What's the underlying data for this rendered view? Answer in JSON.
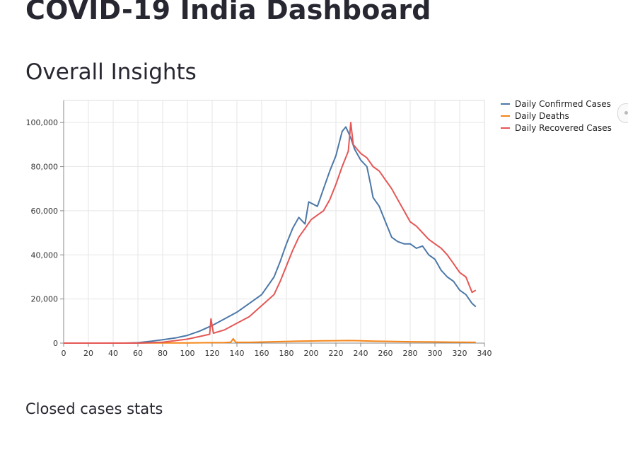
{
  "header": {
    "title": "COVID-19 India Dashboard"
  },
  "sections": {
    "overall": "Overall Insights",
    "closed": "Closed cases stats"
  },
  "chart_data": {
    "type": "line",
    "title": "",
    "xlabel": "",
    "ylabel": "",
    "xlim": [
      0,
      340
    ],
    "ylim": [
      0,
      110000
    ],
    "x_ticks": [
      "0",
      "20",
      "40",
      "60",
      "80",
      "100",
      "120",
      "140",
      "160",
      "180",
      "200",
      "220",
      "240",
      "260",
      "280",
      "300",
      "320",
      "340"
    ],
    "y_ticks": [
      "0",
      "20,000",
      "40,000",
      "60,000",
      "80,000",
      "100,000"
    ],
    "grid": true,
    "legend_position": "top-right",
    "series": [
      {
        "name": "Daily Confirmed Cases",
        "color": "#4c78a8",
        "points": [
          [
            0,
            0
          ],
          [
            30,
            0
          ],
          [
            50,
            0
          ],
          [
            60,
            200
          ],
          [
            70,
            800
          ],
          [
            80,
            1500
          ],
          [
            90,
            2300
          ],
          [
            100,
            3500
          ],
          [
            110,
            5500
          ],
          [
            120,
            8000
          ],
          [
            130,
            11000
          ],
          [
            140,
            14000
          ],
          [
            150,
            18000
          ],
          [
            160,
            22000
          ],
          [
            170,
            30000
          ],
          [
            175,
            37000
          ],
          [
            180,
            45000
          ],
          [
            185,
            52000
          ],
          [
            190,
            57000
          ],
          [
            195,
            54000
          ],
          [
            198,
            64000
          ],
          [
            205,
            62000
          ],
          [
            210,
            70000
          ],
          [
            215,
            78000
          ],
          [
            220,
            85000
          ],
          [
            225,
            96000
          ],
          [
            228,
            98000
          ],
          [
            232,
            93000
          ],
          [
            235,
            88000
          ],
          [
            240,
            83000
          ],
          [
            245,
            80000
          ],
          [
            248,
            72000
          ],
          [
            250,
            66000
          ],
          [
            255,
            62000
          ],
          [
            260,
            55000
          ],
          [
            265,
            48000
          ],
          [
            270,
            46000
          ],
          [
            275,
            45000
          ],
          [
            280,
            45000
          ],
          [
            285,
            43000
          ],
          [
            290,
            44000
          ],
          [
            295,
            40000
          ],
          [
            300,
            38000
          ],
          [
            305,
            33000
          ],
          [
            310,
            30000
          ],
          [
            315,
            28000
          ],
          [
            320,
            24000
          ],
          [
            325,
            22000
          ],
          [
            330,
            18000
          ],
          [
            333,
            16500
          ]
        ]
      },
      {
        "name": "Daily Deaths",
        "color": "#f58518",
        "points": [
          [
            0,
            0
          ],
          [
            60,
            20
          ],
          [
            80,
            50
          ],
          [
            100,
            100
          ],
          [
            120,
            180
          ],
          [
            130,
            250
          ],
          [
            135,
            400
          ],
          [
            137,
            2000
          ],
          [
            139,
            350
          ],
          [
            150,
            350
          ],
          [
            170,
            600
          ],
          [
            190,
            900
          ],
          [
            210,
            1050
          ],
          [
            220,
            1100
          ],
          [
            230,
            1150
          ],
          [
            240,
            1050
          ],
          [
            250,
            900
          ],
          [
            260,
            800
          ],
          [
            280,
            600
          ],
          [
            300,
            500
          ],
          [
            320,
            400
          ],
          [
            333,
            350
          ]
        ]
      },
      {
        "name": "Daily Recovered Cases",
        "color": "#e45756",
        "points": [
          [
            0,
            0
          ],
          [
            60,
            0
          ],
          [
            80,
            400
          ],
          [
            100,
            1800
          ],
          [
            110,
            3000
          ],
          [
            118,
            4000
          ],
          [
            119,
            11000
          ],
          [
            121,
            4500
          ],
          [
            130,
            6000
          ],
          [
            140,
            9000
          ],
          [
            150,
            12000
          ],
          [
            160,
            17000
          ],
          [
            170,
            22000
          ],
          [
            175,
            28000
          ],
          [
            180,
            35000
          ],
          [
            185,
            42000
          ],
          [
            190,
            48000
          ],
          [
            195,
            52000
          ],
          [
            200,
            56000
          ],
          [
            205,
            58000
          ],
          [
            210,
            60000
          ],
          [
            215,
            65000
          ],
          [
            220,
            72000
          ],
          [
            225,
            80000
          ],
          [
            230,
            87000
          ],
          [
            232,
            100000
          ],
          [
            234,
            90000
          ],
          [
            240,
            86000
          ],
          [
            245,
            84000
          ],
          [
            250,
            80000
          ],
          [
            255,
            78000
          ],
          [
            260,
            74000
          ],
          [
            265,
            70000
          ],
          [
            270,
            65000
          ],
          [
            275,
            60000
          ],
          [
            280,
            55000
          ],
          [
            285,
            53000
          ],
          [
            290,
            50000
          ],
          [
            295,
            47000
          ],
          [
            300,
            45000
          ],
          [
            305,
            43000
          ],
          [
            310,
            40000
          ],
          [
            315,
            36000
          ],
          [
            320,
            32000
          ],
          [
            325,
            30000
          ],
          [
            330,
            23000
          ],
          [
            333,
            24000
          ]
        ]
      }
    ]
  }
}
